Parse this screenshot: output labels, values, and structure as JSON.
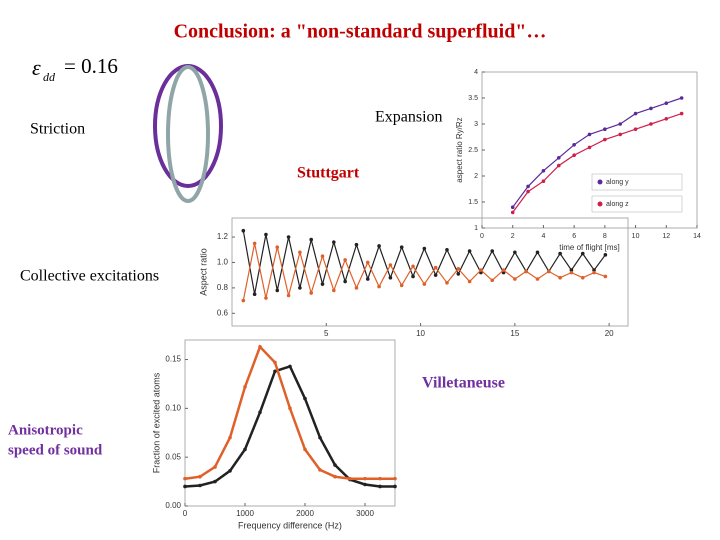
{
  "title": "Conclusion: a \"non-standard superfluid\"…",
  "epsilon": {
    "symbol": "ε",
    "subscript": "dd",
    "equals": "= 0.16"
  },
  "labels": {
    "striction": "Striction",
    "expansion": "Expansion",
    "stuttgart": "Stuttgart",
    "collective": "Collective excitations",
    "villetaneuse": "Villetaneuse",
    "anisotropic": [
      "Anisotropic",
      "speed of sound"
    ]
  },
  "plots": [
    {
      "xlabel": "time of flight [ms]",
      "ylabel": "aspect ratio Ry/Rz",
      "xlim": [
        0,
        14
      ],
      "xticks": [
        0,
        2,
        4,
        6,
        8,
        10,
        12,
        14
      ],
      "ylim": [
        1,
        4
      ],
      "yticks": [
        1,
        1.5,
        2,
        2.5,
        3,
        3.5,
        4
      ],
      "x": [
        2,
        3,
        4,
        5,
        6,
        7,
        8,
        9,
        10,
        11,
        12,
        13
      ],
      "series": [
        {
          "name": "along y",
          "color": "#5b2a9a",
          "values": [
            1.4,
            1.8,
            2.1,
            2.35,
            2.6,
            2.8,
            2.9,
            3.0,
            3.2,
            3.3,
            3.4,
            3.5
          ]
        },
        {
          "name": "along z",
          "color": "#d0204a",
          "values": [
            1.3,
            1.7,
            1.9,
            2.2,
            2.4,
            2.55,
            2.7,
            2.8,
            2.9,
            3.0,
            3.1,
            3.2
          ]
        }
      ]
    },
    {
      "ylabel": "Aspect ratio",
      "xlim": [
        0,
        21
      ],
      "xticks": [
        5,
        10,
        15,
        20
      ],
      "ylim": [
        0.5,
        1.35
      ],
      "yticks": [
        0.6,
        0.8,
        {
          "value": 1,
          "label": "1.0"
        },
        1.2
      ],
      "x": [
        0.6,
        1.2,
        1.8,
        2.4,
        3.0,
        3.6,
        4.2,
        4.8,
        5.4,
        6.0,
        6.6,
        7.2,
        7.8,
        8.4,
        9.0,
        9.6,
        10.2,
        10.8,
        11.4,
        12.0,
        12.6,
        13.2,
        13.8,
        14.4,
        15.0,
        15.6,
        16.2,
        16.8,
        17.4,
        18.0,
        18.6,
        19.2,
        19.8
      ],
      "series": [
        {
          "color": "#222222",
          "values": [
            1.25,
            0.75,
            1.22,
            0.78,
            1.2,
            0.8,
            1.18,
            0.83,
            1.16,
            0.85,
            1.14,
            0.87,
            1.13,
            0.88,
            1.12,
            0.89,
            1.11,
            0.9,
            1.1,
            0.91,
            1.09,
            0.92,
            1.09,
            0.92,
            1.08,
            0.93,
            1.08,
            0.93,
            1.07,
            0.94,
            1.07,
            0.94,
            1.06
          ]
        },
        {
          "color": "#e0602a",
          "values": [
            0.7,
            1.15,
            0.72,
            1.12,
            0.74,
            1.08,
            0.76,
            1.05,
            0.78,
            1.02,
            0.8,
            1.0,
            0.81,
            0.98,
            0.82,
            0.97,
            0.83,
            0.96,
            0.84,
            0.95,
            0.85,
            0.94,
            0.86,
            0.94,
            0.87,
            0.93,
            0.87,
            0.93,
            0.88,
            0.92,
            0.88,
            0.92,
            0.89
          ]
        }
      ]
    },
    {
      "xlabel": "Frequency difference (Hz)",
      "ylabel": "Fraction of excited atoms",
      "xlim": [
        0,
        3500
      ],
      "xticks": [
        0,
        1000,
        2000,
        3000
      ],
      "ylim": [
        0,
        0.17
      ],
      "yticks": [
        {
          "value": 0,
          "label": "0.00"
        },
        0.05,
        {
          "value": 0.1,
          "label": "0.10"
        },
        0.15
      ],
      "x": [
        0,
        250,
        500,
        750,
        1000,
        1250,
        1500,
        1750,
        2000,
        2250,
        2500,
        2750,
        3000,
        3250,
        3500
      ],
      "series": [
        {
          "color": "#222222",
          "values": [
            0.02,
            0.021,
            0.025,
            0.036,
            0.058,
            0.096,
            0.138,
            0.143,
            0.11,
            0.07,
            0.042,
            0.027,
            0.022,
            0.02,
            0.02
          ]
        },
        {
          "color": "#e0602a",
          "values": [
            0.028,
            0.03,
            0.04,
            0.07,
            0.122,
            0.163,
            0.147,
            0.1,
            0.058,
            0.037,
            0.03,
            0.028,
            0.028,
            0.028,
            0.028
          ]
        }
      ]
    }
  ]
}
